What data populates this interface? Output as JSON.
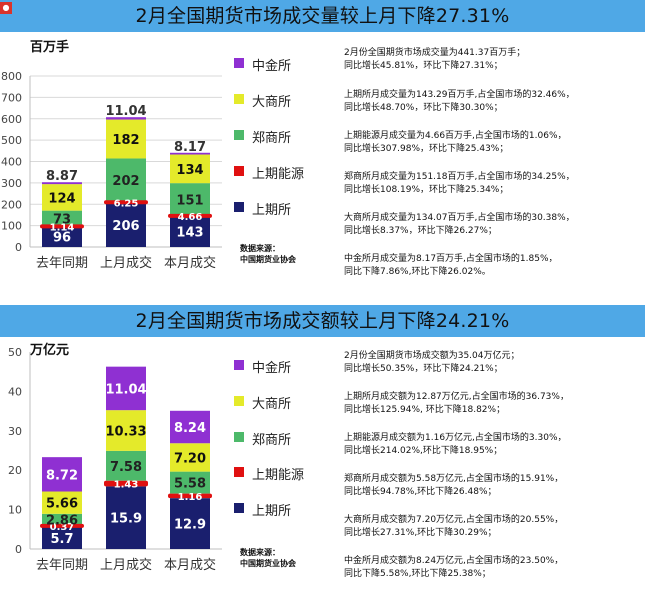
{
  "colors": {
    "banner": "#4fa8e6",
    "shfe": "#1a1f6e",
    "ine": "#e01010",
    "czce": "#4db96a",
    "dce": "#e4ea2a",
    "cffex": "#8f30d2"
  },
  "legend": [
    "中金所",
    "大商所",
    "郑商所",
    "上期能源",
    "上期所"
  ],
  "source_label": "数据来源：",
  "source_name": "中国期货业协会",
  "panels": [
    {
      "banner": "2月全国期货市场成交量较上月下降27.31%",
      "unit": "百万手",
      "notes": [
        "2月份全国期货市场成交量为441.37百万手；\n同比增长45.81%，环比下降27.31%；",
        "上期所月成交量为143.29百万手,占全国市场的32.46%，\n同比增长48.70%，环比下降30.30%；",
        "上期能源月成交量为4.66百万手,占全国市场的1.06%，\n同比增长307.98%，环比下降25.43%；",
        "郑商所月成交量为151.18百万手,占全国市场的34.25%，\n同比增长108.19%，环比下降25.34%；",
        "大商所月成交量为134.07百万手,占全国市场的30.38%，\n同比增长8.37%，环比下降26.27%；",
        "中金所月成交量为8.17百万手,占全国市场的1.85%，\n同比下降7.86%,环比下降26.02%。"
      ]
    },
    {
      "banner": "2月全国期货市场成交额较上月下降24.21%",
      "unit": "万亿元",
      "notes": [
        "2月份全国期货市场成交额为35.04万亿元；\n同比增长50.35%，环比下降24.21%；",
        "上期所月成交额为12.87万亿元,占全国市场的36.73%，\n同比增长125.94%, 环比下降18.82%；",
        "上期能源月成交额为1.16万亿元,占全国市场的3.30%，\n同比增长214.02%,环比下降18.95%；",
        "郑商所月成交额为5.58万亿元,占全国市场的15.91%，\n同比增长94.78%,环比下降26.48%；",
        "大商所月成交额为7.20万亿元,占全国市场的20.55%，\n同比增长27.31%,环比下降30.29%；",
        "中金所月成交额为8.24万亿元,占全国市场的23.50%，\n同比下降5.58%,环比下降25.38%；"
      ]
    }
  ],
  "chart_data": [
    {
      "type": "bar",
      "stacked": true,
      "ylabel": "百万手",
      "ylim": [
        0,
        800
      ],
      "yticks": [
        0,
        100,
        200,
        300,
        400,
        500,
        600,
        700,
        800
      ],
      "categories": [
        "去年同期",
        "上月成交",
        "本月成交"
      ],
      "grid": true,
      "legend_position": "right",
      "series": [
        {
          "name": "上期所",
          "values": [
            96,
            206,
            143
          ]
        },
        {
          "name": "上期能源",
          "values": [
            1.14,
            6.25,
            4.66
          ]
        },
        {
          "name": "郑商所",
          "values": [
            73,
            202,
            151
          ]
        },
        {
          "name": "大商所",
          "values": [
            124,
            182,
            134
          ]
        },
        {
          "name": "中金所",
          "values": [
            8.87,
            11.04,
            8.17
          ]
        }
      ],
      "data_labels": [
        [
          "96",
          "206",
          "143"
        ],
        [
          "1.14",
          "6.25",
          "4.66"
        ],
        [
          "73",
          "202",
          "151"
        ],
        [
          "124",
          "182",
          "134"
        ],
        [
          "8.87",
          "11.04",
          "8.17"
        ]
      ]
    },
    {
      "type": "bar",
      "stacked": true,
      "ylabel": "万亿元",
      "ylim": [
        0,
        50
      ],
      "yticks": [
        0,
        10,
        20,
        30,
        40,
        50
      ],
      "categories": [
        "去年同期",
        "上月成交",
        "本月成交"
      ],
      "grid": false,
      "legend_position": "right",
      "series": [
        {
          "name": "上期所",
          "values": [
            5.7,
            15.9,
            12.9
          ]
        },
        {
          "name": "上期能源",
          "values": [
            0.37,
            1.43,
            1.16
          ]
        },
        {
          "name": "郑商所",
          "values": [
            2.86,
            7.58,
            5.58
          ]
        },
        {
          "name": "大商所",
          "values": [
            5.66,
            10.33,
            7.2
          ]
        },
        {
          "name": "中金所",
          "values": [
            8.72,
            11.04,
            8.24
          ]
        }
      ],
      "data_labels": [
        [
          "5.7",
          "15.9",
          "12.9"
        ],
        [
          "0.37",
          "1.43",
          "1.16"
        ],
        [
          "2.86",
          "7.58",
          "5.58"
        ],
        [
          "5.66",
          "10.33",
          "7.20"
        ],
        [
          "8.72",
          "11.04",
          "8.24"
        ]
      ]
    }
  ]
}
